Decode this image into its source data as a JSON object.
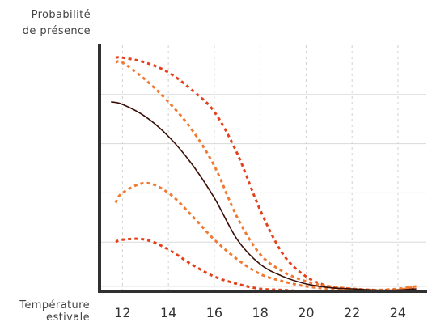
{
  "chart_data": {
    "type": "line",
    "title": "",
    "ylabel_lines": [
      "Probabilité",
      "de présence"
    ],
    "xlabel_lines": [
      "Température",
      "estivale"
    ],
    "xlim": [
      11,
      25.2
    ],
    "ylim": [
      0,
      1
    ],
    "x_ticks": [
      12,
      14,
      16,
      18,
      20,
      22,
      24
    ],
    "y_gridlines": [
      0.2,
      0.4,
      0.6,
      0.8
    ],
    "y_tick_labels_visible": false,
    "x_gridlines": "dashed",
    "legend": "none",
    "series": [
      {
        "role": "estimate",
        "color": "#3a0d05",
        "dash": "solid",
        "points": [
          [
            11.5,
            0.77
          ],
          [
            12,
            0.76
          ],
          [
            13,
            0.71
          ],
          [
            14,
            0.63
          ],
          [
            15,
            0.52
          ],
          [
            16,
            0.38
          ],
          [
            17,
            0.21
          ],
          [
            18,
            0.11
          ],
          [
            19,
            0.06
          ],
          [
            20,
            0.03
          ],
          [
            21,
            0.015
          ],
          [
            22,
            0.01
          ],
          [
            23,
            0.005
          ],
          [
            24,
            0.005
          ],
          [
            24.8,
            0.01
          ]
        ]
      },
      {
        "role": "inner-upper-bound",
        "color": "#f07a32",
        "dash": "dotted",
        "points": [
          [
            11.7,
            0.93
          ],
          [
            12,
            0.93
          ],
          [
            13,
            0.86
          ],
          [
            14,
            0.77
          ],
          [
            15,
            0.66
          ],
          [
            16,
            0.51
          ],
          [
            17,
            0.3
          ],
          [
            18,
            0.15
          ],
          [
            19,
            0.08
          ],
          [
            20,
            0.04
          ],
          [
            21,
            0.02
          ],
          [
            22,
            0.01
          ],
          [
            23,
            0.005
          ],
          [
            24,
            0.01
          ],
          [
            24.8,
            0.02
          ]
        ]
      },
      {
        "role": "inner-lower-bound",
        "color": "#f07a32",
        "dash": "dotted",
        "points": [
          [
            11.7,
            0.36
          ],
          [
            12,
            0.4
          ],
          [
            13,
            0.44
          ],
          [
            14,
            0.4
          ],
          [
            15,
            0.31
          ],
          [
            16,
            0.21
          ],
          [
            17,
            0.13
          ],
          [
            18,
            0.07
          ],
          [
            19,
            0.04
          ],
          [
            20,
            0.02
          ],
          [
            21,
            0.01
          ],
          [
            22,
            0.005
          ],
          [
            23,
            0.0
          ],
          [
            24,
            0.005
          ],
          [
            24.8,
            0.02
          ]
        ]
      },
      {
        "role": "outer-upper-bound",
        "color": "#e4401a",
        "dash": "dotted",
        "points": [
          [
            11.7,
            0.95
          ],
          [
            12,
            0.95
          ],
          [
            13,
            0.93
          ],
          [
            14,
            0.89
          ],
          [
            15,
            0.82
          ],
          [
            16,
            0.73
          ],
          [
            17,
            0.56
          ],
          [
            18,
            0.33
          ],
          [
            19,
            0.15
          ],
          [
            20,
            0.06
          ],
          [
            21,
            0.02
          ],
          [
            22,
            0.01
          ],
          [
            23,
            0.005
          ],
          [
            24,
            0.005
          ],
          [
            24.8,
            0.01
          ]
        ]
      },
      {
        "role": "outer-lower-bound",
        "color": "#e4401a",
        "dash": "dotted",
        "points": [
          [
            11.7,
            0.2
          ],
          [
            12,
            0.21
          ],
          [
            13,
            0.21
          ],
          [
            14,
            0.17
          ],
          [
            15,
            0.11
          ],
          [
            16,
            0.06
          ],
          [
            17,
            0.03
          ],
          [
            18,
            0.01
          ],
          [
            19,
            0.005
          ],
          [
            20,
            0.0
          ],
          [
            21,
            0.0
          ],
          [
            22,
            0.0
          ],
          [
            23,
            0.0
          ],
          [
            24,
            0.0
          ],
          [
            24.8,
            0.005
          ]
        ]
      }
    ]
  }
}
